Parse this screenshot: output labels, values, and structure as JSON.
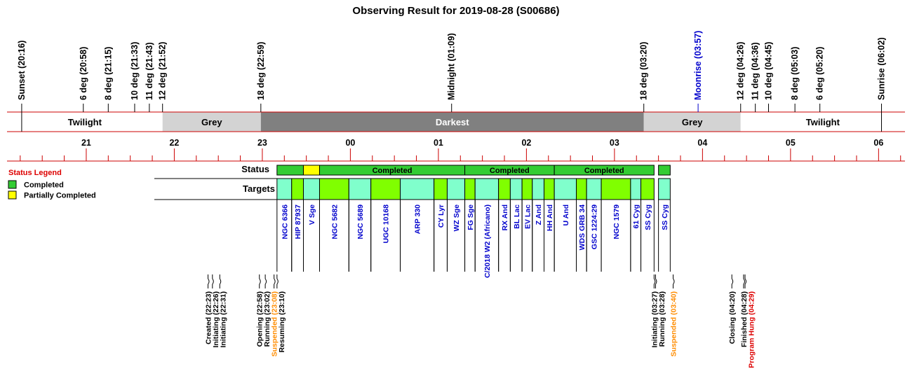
{
  "chart_data": {
    "type": "timeline",
    "title": "Observing Result for 2019-08-28 (S00686)",
    "time_axis": {
      "start": 20.1,
      "end": 30.3,
      "tick_labels": [
        "21",
        "22",
        "23",
        "00",
        "01",
        "02",
        "03",
        "04",
        "05",
        "06"
      ],
      "tick_hours": [
        21,
        22,
        23,
        24,
        25,
        26,
        27,
        28,
        29,
        30
      ]
    },
    "sun_markers": [
      {
        "label": "Sunset (20:16)",
        "time": 20.2667,
        "color": "#000000"
      },
      {
        "label": "6 deg (20:58)",
        "time": 20.9667,
        "color": "#000000"
      },
      {
        "label": "8 deg (21:15)",
        "time": 21.25,
        "color": "#000000"
      },
      {
        "label": "10 deg (21:33)",
        "time": 21.55,
        "color": "#000000"
      },
      {
        "label": "11 deg (21:43)",
        "time": 21.7167,
        "color": "#000000"
      },
      {
        "label": "12 deg (21:52)",
        "time": 21.8667,
        "color": "#000000"
      },
      {
        "label": "18 deg (22:59)",
        "time": 22.9833,
        "color": "#000000"
      },
      {
        "label": "Midnight (01:09)",
        "time": 25.15,
        "color": "#000000"
      },
      {
        "label": "18 deg (03:20)",
        "time": 27.3333,
        "color": "#000000"
      },
      {
        "label": "Moonrise (03:57)",
        "time": 27.95,
        "color": "#0000cc"
      },
      {
        "label": "12 deg (04:26)",
        "time": 28.4333,
        "color": "#000000"
      },
      {
        "label": "11 deg (04:36)",
        "time": 28.6,
        "color": "#000000"
      },
      {
        "label": "10 deg (04:45)",
        "time": 28.75,
        "color": "#000000"
      },
      {
        "label": "8 deg (05:03)",
        "time": 29.05,
        "color": "#000000"
      },
      {
        "label": "6 deg (05:20)",
        "time": 29.3333,
        "color": "#000000"
      },
      {
        "label": "Sunrise (06:02)",
        "time": 30.0333,
        "color": "#000000"
      }
    ],
    "bands": [
      {
        "label": "Twilight",
        "start": 20.1,
        "end": 21.8667,
        "fill": "#ffffff",
        "text_color": "#000000"
      },
      {
        "label": "Grey",
        "start": 21.8667,
        "end": 22.9833,
        "fill": "#d3d3d3",
        "text_color": "#000000"
      },
      {
        "label": "Darkest",
        "start": 22.9833,
        "end": 27.3333,
        "fill": "#808080",
        "text_color": "#ffffff"
      },
      {
        "label": "Grey",
        "start": 27.3333,
        "end": 28.4333,
        "fill": "#d3d3d3",
        "text_color": "#000000"
      },
      {
        "label": "Twilight",
        "start": 28.4333,
        "end": 30.3,
        "fill": "#ffffff",
        "text_color": "#000000"
      }
    ],
    "rows": {
      "status_label": "Status",
      "targets_label": "Targets"
    },
    "legend": {
      "title": "Status Legend",
      "items": [
        {
          "label": "Completed",
          "color": "#33cc33"
        },
        {
          "label": "Partially Completed",
          "color": "#ffff00"
        }
      ]
    },
    "status_segments": [
      {
        "start": 23.1667,
        "end": 23.4667,
        "status": "Completed",
        "label": ""
      },
      {
        "start": 23.4667,
        "end": 23.65,
        "status": "Partially Completed",
        "label": ""
      },
      {
        "start": 23.65,
        "end": 25.3,
        "status": "Completed",
        "label": "Completed"
      },
      {
        "start": 25.3,
        "end": 26.3167,
        "status": "Completed",
        "label": "Completed"
      },
      {
        "start": 26.3167,
        "end": 27.45,
        "status": "Completed",
        "label": "Completed"
      },
      {
        "start": 27.5,
        "end": 27.6333,
        "status": "Completed",
        "label": ""
      }
    ],
    "targets": [
      {
        "name": "NGC 6366",
        "start": 23.1667,
        "end": 23.3333
      },
      {
        "name": "HIP 87937",
        "start": 23.3333,
        "end": 23.4667
      },
      {
        "name": "V Sge",
        "start": 23.4667,
        "end": 23.65
      },
      {
        "name": "NGC 5682",
        "start": 23.65,
        "end": 23.9833
      },
      {
        "name": "NGC 5689",
        "start": 23.9833,
        "end": 24.2333
      },
      {
        "name": "UGC 10168",
        "start": 24.2333,
        "end": 24.5667
      },
      {
        "name": "ARP 330",
        "start": 24.5667,
        "end": 24.95
      },
      {
        "name": "CY Lyr",
        "start": 24.95,
        "end": 25.1
      },
      {
        "name": "WZ Sge",
        "start": 25.1,
        "end": 25.3
      },
      {
        "name": "FG Sge",
        "start": 25.3,
        "end": 25.4167
      },
      {
        "name": "C/2018 W2 (Africano)",
        "start": 25.4167,
        "end": 25.6833
      },
      {
        "name": "RX And",
        "start": 25.6833,
        "end": 25.8167
      },
      {
        "name": "BL Lac",
        "start": 25.8167,
        "end": 25.95
      },
      {
        "name": "EV Lac",
        "start": 25.95,
        "end": 26.0667
      },
      {
        "name": "Z And",
        "start": 26.0667,
        "end": 26.2
      },
      {
        "name": "HH And",
        "start": 26.2,
        "end": 26.3167
      },
      {
        "name": "U And",
        "start": 26.3167,
        "end": 26.5667
      },
      {
        "name": "WDS GRB 34",
        "start": 26.5667,
        "end": 26.6833
      },
      {
        "name": "GSC 1224:29",
        "start": 26.6833,
        "end": 26.85
      },
      {
        "name": "NGC 1579",
        "start": 26.85,
        "end": 27.1833
      },
      {
        "name": "61 Cyg",
        "start": 27.1833,
        "end": 27.3
      },
      {
        "name": "SS Cyg",
        "start": 27.3,
        "end": 27.45
      },
      {
        "name": "SS Cyg",
        "start": 27.5,
        "end": 27.6333
      }
    ],
    "events": [
      {
        "label": "Created (22:23)",
        "time": 22.3833,
        "color": "#000000"
      },
      {
        "label": "Initiating (22:26)",
        "time": 22.4333,
        "color": "#000000"
      },
      {
        "label": "Initiating (22:31)",
        "time": 22.5167,
        "color": "#000000"
      },
      {
        "label": "Opening (22:58)",
        "time": 22.9667,
        "color": "#000000"
      },
      {
        "label": "Running (23:02)",
        "time": 23.0333,
        "color": "#000000"
      },
      {
        "label": "Suspended (23:08)",
        "time": 23.1333,
        "color": "#ff8c00"
      },
      {
        "label": "Resuming (23:10)",
        "time": 23.1667,
        "color": "#000000"
      },
      {
        "label": "Initiating (03:27)",
        "time": 27.45,
        "color": "#000000"
      },
      {
        "label": "Running (03:28)",
        "time": 27.4667,
        "color": "#000000"
      },
      {
        "label": "Suspended (03:40)",
        "time": 27.6667,
        "color": "#ff8c00"
      },
      {
        "label": "Closing (04:20)",
        "time": 28.3333,
        "color": "#000000"
      },
      {
        "label": "Finished (04:28)",
        "time": 28.4667,
        "color": "#000000"
      },
      {
        "label": "Program Hung (04:29)",
        "time": 28.4833,
        "color": "#dd0000"
      }
    ],
    "colors": {
      "completed": "#33cc33",
      "partial": "#ffff00",
      "target_a": "#80ffcc",
      "target_b": "#80ff00",
      "axis": "#cc0000"
    }
  }
}
